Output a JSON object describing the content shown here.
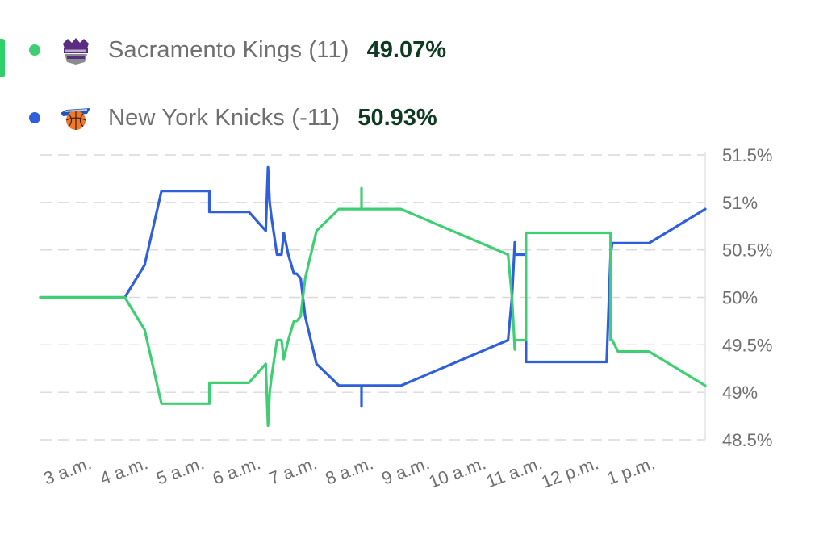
{
  "colors": {
    "accent": "#2fd06a",
    "series_kings": "#3ecf73",
    "series_knicks": "#2f5fdc",
    "pct_text": "#0e3a22",
    "label_text": "#6f6f6f",
    "grid": "#d9d9d9"
  },
  "legend": {
    "kings": {
      "icon": "sacramento-kings-logo-icon",
      "label": "Sacramento Kings (11)",
      "pct": "49.07%"
    },
    "knicks": {
      "icon": "new-york-knicks-logo-icon",
      "label": "New York Knicks (-11)",
      "pct": "50.93%"
    }
  },
  "chart_data": {
    "type": "line",
    "ylim": [
      48.5,
      51.5
    ],
    "yticks": [
      51.5,
      51,
      50.5,
      50,
      49.5,
      49,
      48.5
    ],
    "ytick_labels": [
      "51.5%",
      "51%",
      "50.5%",
      "50%",
      "49.5%",
      "49%",
      "48.5%"
    ],
    "xlim": [
      2.5,
      14.3
    ],
    "xticks": [
      3,
      4,
      5,
      6,
      7,
      8,
      9,
      10,
      11,
      12,
      13
    ],
    "xtick_labels": [
      "3 a.m.",
      "4 a.m.",
      "5 a.m.",
      "6 a.m.",
      "7 a.m.",
      "8 a.m.",
      "9 a.m.",
      "10 a.m.",
      "11 a.m.",
      "12 p.m.",
      "1 p.m."
    ],
    "grid": true,
    "legend_position": "top-left",
    "series": [
      {
        "key": "kings",
        "x": [
          2.5,
          4.0,
          4.35,
          4.65,
          5.5,
          5.5,
          6.2,
          6.5,
          6.54,
          6.57,
          6.6,
          6.7,
          6.78,
          6.82,
          6.9,
          7.0,
          7.05,
          7.12,
          7.2,
          7.4,
          7.8,
          8.2,
          8.2,
          8.2,
          8.2,
          8.2,
          8.2,
          8.2,
          8.25,
          8.9,
          10.8,
          10.87,
          10.92,
          10.92,
          11.09,
          11.12,
          11.12,
          11.12,
          11.12,
          12.55,
          12.62,
          12.62,
          12.65,
          12.75,
          13.3,
          14.3
        ],
        "y": [
          50.0,
          50.0,
          49.66,
          48.88,
          48.88,
          49.1,
          49.1,
          49.3,
          48.65,
          49.0,
          49.15,
          49.55,
          49.55,
          49.35,
          49.55,
          49.75,
          49.75,
          49.8,
          50.2,
          50.7,
          50.93,
          50.93,
          51.15,
          50.93,
          50.93,
          50.93,
          50.93,
          50.93,
          50.93,
          50.93,
          50.45,
          50.0,
          49.45,
          49.55,
          49.55,
          49.55,
          50.68,
          50.68,
          50.68,
          50.68,
          50.68,
          49.55,
          49.55,
          49.43,
          49.43,
          49.07
        ],
        "label_x": [
          2.5,
          4.0,
          4.35,
          4.65,
          5.5,
          5.5,
          6.2,
          6.5,
          6.54,
          6.57,
          6.6,
          6.7,
          6.78,
          6.82,
          6.9,
          7.0,
          7.05,
          7.12,
          7.2,
          7.4,
          7.8,
          8.2,
          8.2,
          8.2,
          8.2,
          8.2,
          8.2,
          8.2,
          8.25,
          8.9,
          10.8,
          10.87,
          10.92,
          10.92,
          11.09,
          11.12,
          11.12,
          11.12,
          11.12,
          12.55,
          12.62,
          12.62,
          12.65,
          12.75,
          13.3,
          14.3
        ]
      },
      {
        "key": "knicks",
        "x": [
          2.5,
          4.0,
          4.35,
          4.65,
          5.5,
          5.5,
          6.2,
          6.5,
          6.54,
          6.57,
          6.6,
          6.7,
          6.78,
          6.82,
          6.9,
          7.0,
          7.05,
          7.12,
          7.2,
          7.4,
          7.8,
          8.2,
          8.2,
          8.2,
          8.25,
          8.9,
          10.8,
          10.87,
          10.92,
          10.92,
          11.09,
          11.12,
          11.12,
          11.12,
          12.55,
          12.62,
          12.62,
          12.65,
          12.75,
          13.3,
          14.3
        ],
        "y": [
          50.0,
          50.0,
          50.34,
          51.12,
          51.12,
          50.9,
          50.9,
          50.7,
          51.37,
          51.0,
          50.85,
          50.45,
          50.45,
          50.68,
          50.45,
          50.25,
          50.25,
          50.2,
          49.8,
          49.3,
          49.07,
          49.07,
          48.85,
          49.07,
          49.07,
          49.07,
          49.55,
          50.0,
          50.58,
          50.45,
          50.45,
          50.45,
          49.32,
          49.32,
          49.32,
          50.45,
          50.45,
          50.57,
          50.57,
          50.57,
          50.93
        ]
      }
    ]
  }
}
